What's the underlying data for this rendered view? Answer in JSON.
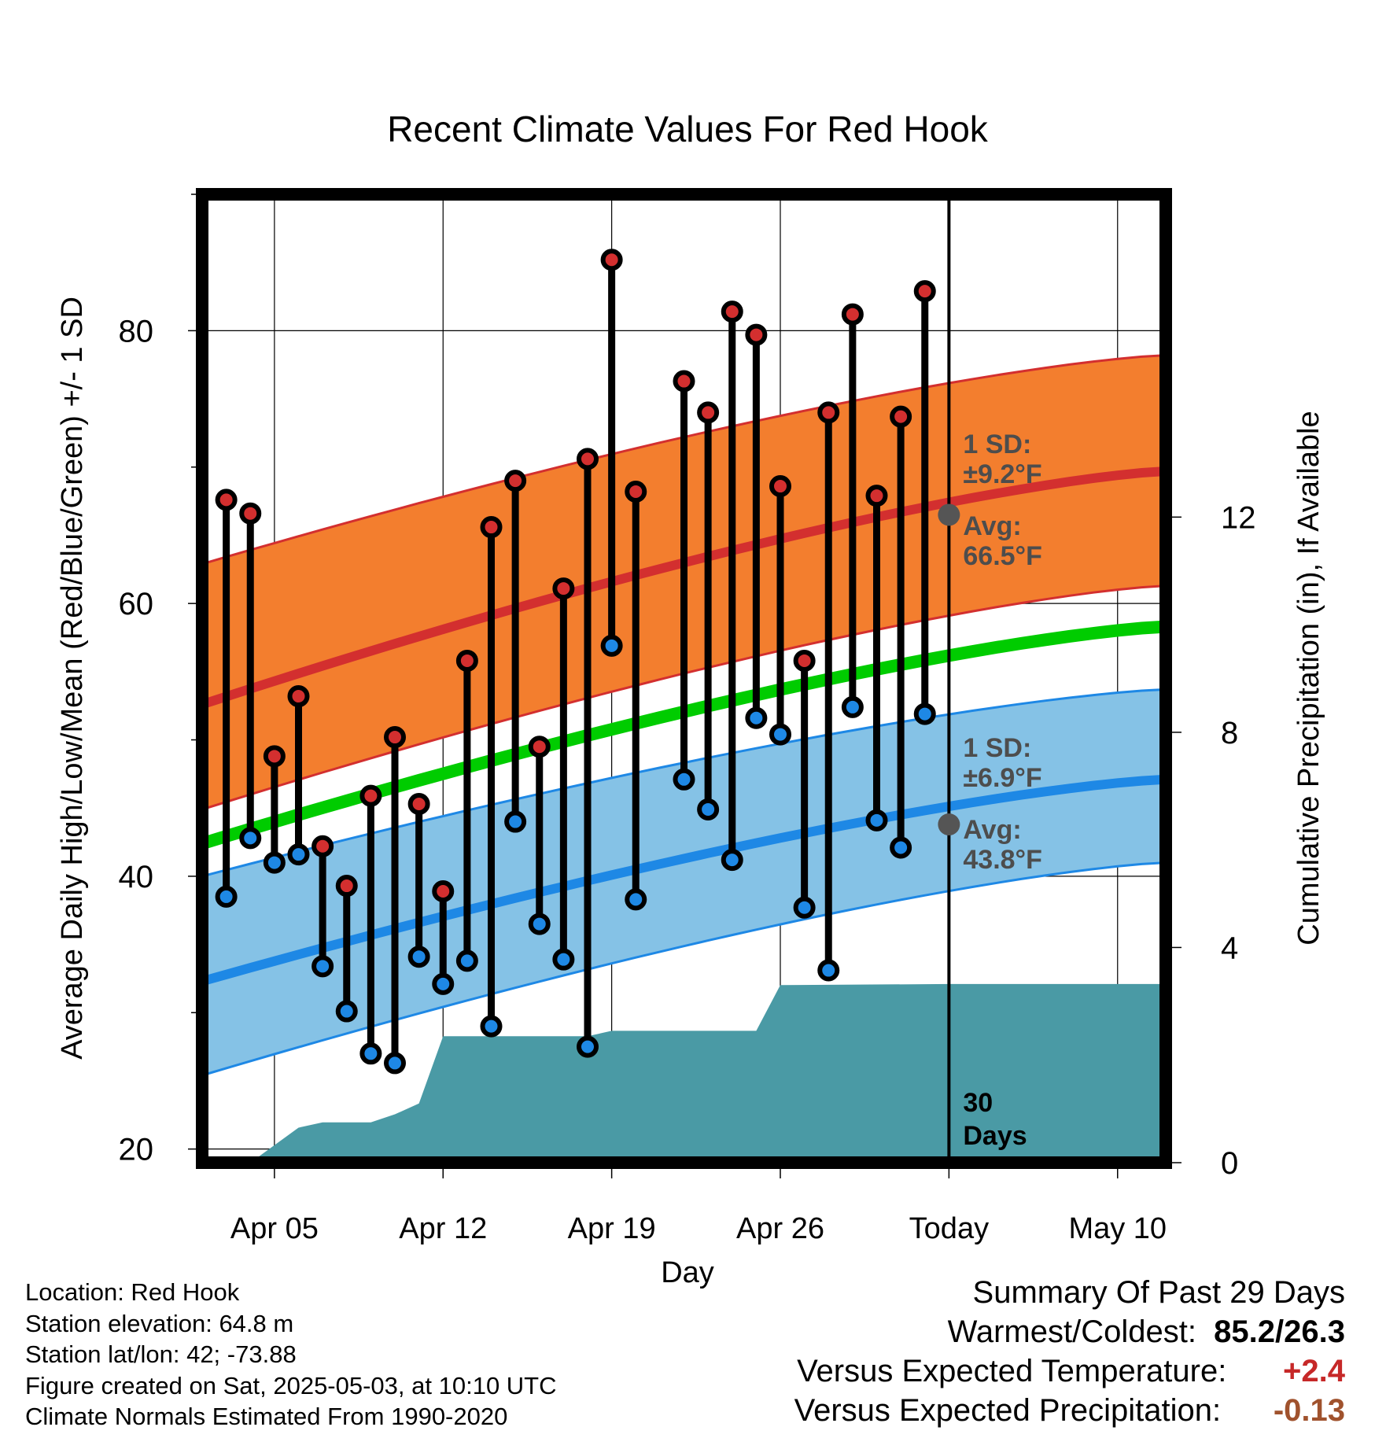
{
  "chart_data": {
    "type": "line",
    "title": "Recent Climate Values For Red Hook",
    "xlabel": "Day",
    "ylabel": "Average Daily High/Low/Mean (Red/Blue/Green) +/- 1 SD",
    "y2label": "Cumulative Precipitation (in), If Available",
    "x_tick_labels": [
      "Apr 05",
      "Apr 12",
      "Apr 19",
      "Apr 26",
      "Today",
      "May 10"
    ],
    "x_tick_dates": [
      "2025-04-05",
      "2025-04-12",
      "2025-04-19",
      "2025-04-26",
      "2025-05-03",
      "2025-05-10"
    ],
    "xlim": [
      "2025-04-02",
      "2025-05-12"
    ],
    "ylim": [
      19,
      90
    ],
    "y_ticks": [
      20,
      40,
      60,
      80
    ],
    "y2lim": [
      0,
      18
    ],
    "y2_ticks": [
      0,
      4,
      8,
      12
    ],
    "grid": true,
    "colors": {
      "high": "#d32f2f",
      "low": "#1e88e5",
      "mean": "#00cc00",
      "high_band": "#f37e2e",
      "low_band": "#85c2e6",
      "precip": "#4a9aa5",
      "marker_today": "#555555",
      "annotation": "#4d4d4d"
    },
    "daily_observations": {
      "dates": [
        "2025-04-03",
        "2025-04-04",
        "2025-04-05",
        "2025-04-06",
        "2025-04-07",
        "2025-04-08",
        "2025-04-09",
        "2025-04-10",
        "2025-04-11",
        "2025-04-12",
        "2025-04-13",
        "2025-04-14",
        "2025-04-15",
        "2025-04-16",
        "2025-04-17",
        "2025-04-18",
        "2025-04-19",
        "2025-04-20",
        "2025-04-22",
        "2025-04-23",
        "2025-04-24",
        "2025-04-25",
        "2025-04-26",
        "2025-04-27",
        "2025-04-28",
        "2025-04-29",
        "2025-04-30",
        "2025-05-01",
        "2025-05-02"
      ],
      "high": [
        67.6,
        66.6,
        48.8,
        53.2,
        42.2,
        39.3,
        45.9,
        50.2,
        45.3,
        38.9,
        55.8,
        65.6,
        69.0,
        49.5,
        61.1,
        70.6,
        85.2,
        68.2,
        76.3,
        74.0,
        81.4,
        79.7,
        68.6,
        55.8,
        74.0,
        81.2,
        67.9,
        73.7,
        82.9
      ],
      "low": [
        38.5,
        42.8,
        41.0,
        41.6,
        33.4,
        30.1,
        27.0,
        26.3,
        34.1,
        32.1,
        33.8,
        29.0,
        44.0,
        36.5,
        33.9,
        27.5,
        56.9,
        38.3,
        47.1,
        44.9,
        41.2,
        51.6,
        50.4,
        37.7,
        33.1,
        52.4,
        44.1,
        42.1,
        51.9
      ]
    },
    "normals": {
      "dates": [
        "2025-04-02",
        "2025-05-12"
      ],
      "mean_high": [
        52.6,
        69.7
      ],
      "mean_high_minus_sd": [
        44.9,
        61.3
      ],
      "mean_high_plus_sd": [
        62.9,
        78.2
      ],
      "mean_low": [
        32.3,
        47.1
      ],
      "mean_low_minus_sd": [
        25.4,
        41.0
      ],
      "mean_low_plus_sd": [
        40.0,
        53.7
      ],
      "mean": [
        42.4,
        58.3
      ]
    },
    "precipitation_cumulative": {
      "dates": [
        "2025-04-04",
        "2025-04-06",
        "2025-04-07",
        "2025-04-08",
        "2025-04-09",
        "2025-04-10",
        "2025-04-11",
        "2025-04-12",
        "2025-04-18",
        "2025-04-19",
        "2025-04-22",
        "2025-04-25",
        "2025-04-26",
        "2025-05-03",
        "2025-05-12"
      ],
      "values": [
        0.0,
        0.65,
        0.75,
        0.75,
        0.75,
        0.9,
        1.1,
        2.35,
        2.35,
        2.45,
        2.45,
        2.45,
        3.3,
        3.32,
        3.32
      ]
    },
    "annotations": {
      "high_sd_label": "1 SD:",
      "high_sd_value": "±9.2°F",
      "high_avg_label": "Avg:",
      "high_avg_value": "66.5°F",
      "low_sd_label": "1 SD:",
      "low_sd_value": "±6.9°F",
      "low_avg_label": "Avg:",
      "low_avg_value": "43.8°F",
      "window_line1": "30",
      "window_line2": "Days",
      "today_high_avg": 66.5,
      "today_low_avg": 43.8
    }
  },
  "footer": {
    "location": "Location: Red Hook",
    "elevation": "Station elevation: 64.8 m",
    "latlon": "Station lat/lon: 42; -73.88",
    "created": "Figure created on Sat, 2025-05-03, at 10:10 UTC",
    "normals": "Climate Normals Estimated From 1990-2020"
  },
  "summary": {
    "title": "Summary Of Past 29 Days",
    "warm_cold_label": "Warmest/Coldest:",
    "warm_cold_value": "85.2/26.3",
    "temp_label": "Versus Expected Temperature:",
    "temp_value": "+2.4",
    "precip_label": "Versus Expected Precipitation:",
    "precip_value": "-0.13"
  }
}
